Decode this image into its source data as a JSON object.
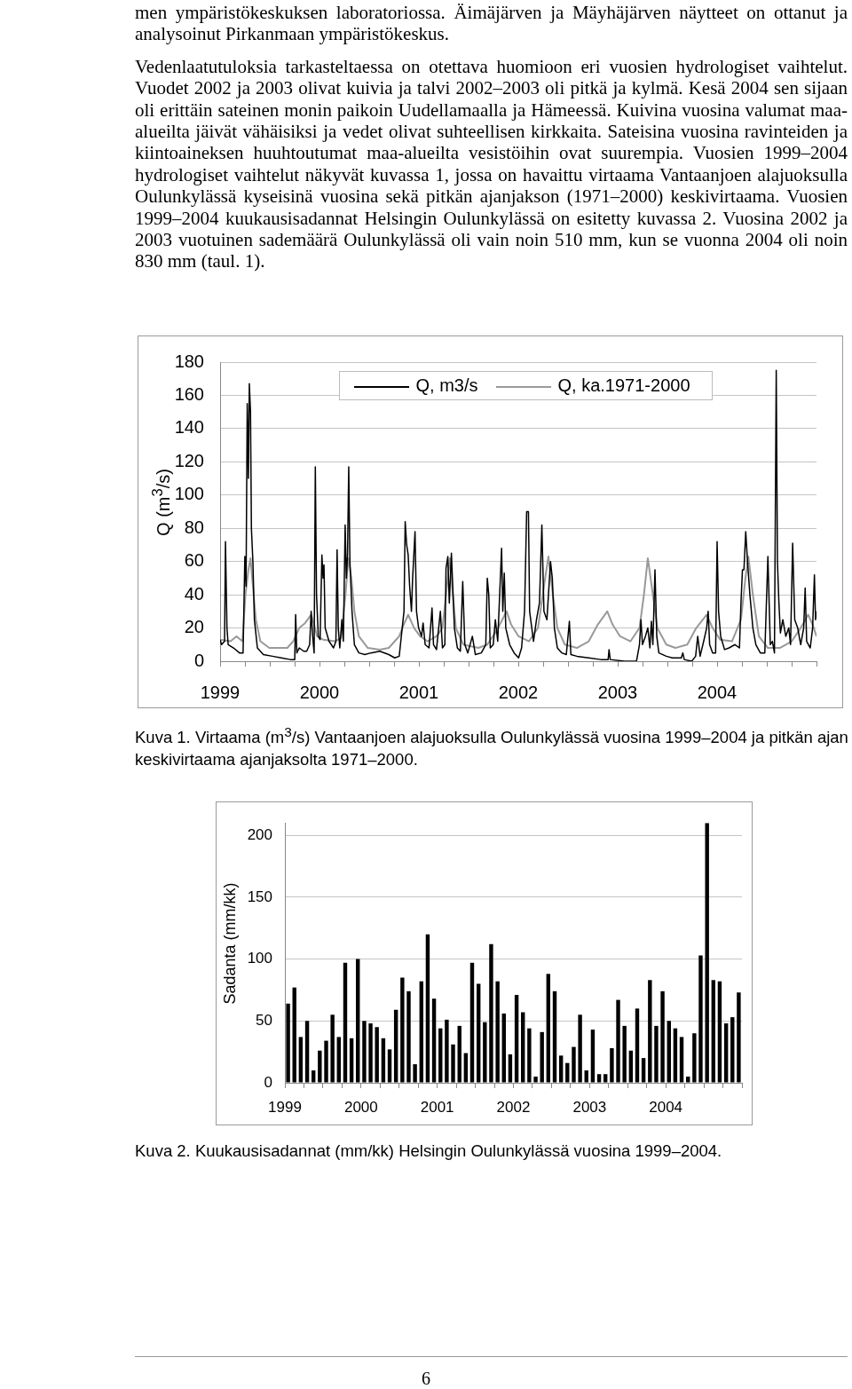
{
  "chart_data": [
    {
      "type": "line",
      "title": "Kuva 1. Virtaama (m$^{3}$/s) Vantaanjoen alajuoksulla Oulunkylässä vuosina 1999–2004 ja pitkän ajan keskivirtaama ajanjaksolta 1971–2000.",
      "annotations": [
        "men ympäristökeskuksen laboratoriossa. Äimäjärven ja Mäyhäjärven näytteet on ottanut ja analysoinut Pirkanmaan ympäristökeskus.",
        "Vedenlaatutuloksia tarkasteltaessa on otettava huomioon eri vuosien hydrologiset vaihtelut. Vuodet 2002 ja 2003 olivat kuivia ja talvi 2002–2003 oli pitkä ja kylmä. Kesä 2004 sen sijaan oli erittäin sateinen monin paikoin Uudellamaalla ja Hämeessä. Kuivina vuosina valumat maa-alueilta jäivät vähäisiksi ja vedet olivat suhteellisen kirkkaita. Sateisina vuosina ravinteiden ja kiintoaineksen huuhtoutumat maa-alueilta vesistöihin ovat suurempia. Vuosien 1999–2004 hydrologiset vaihtelut näkyvät kuvassa 1, jossa on havaittu virtaama Vantaanjoen alajuoksulla Oulunkylässä kyseisinä vuosina sekä pitkän ajanjakson (1971–2000) keskivirtaama. Vuosien 1999–2004 kuukausisadannat Helsingin Oulunkylässä on esitetty kuvassa 2. Vuosina 2002 ja 2003 vuotuinen sademäärä Oulunkylässä oli vain noin 510 mm, kun se vuonna 2004 oli noin 830 mm (taul. 1)."
      ],
      "ylabel": "Q (m$^{3}$/s)",
      "xlim": [
        1999,
        2005
      ],
      "xticks": [
        1999,
        {
          "value": 1999.25,
          "label": null
        },
        {
          "value": 1999.5,
          "label": null
        },
        {
          "value": 1999.75,
          "label": null
        },
        2000,
        {
          "value": 2000.25,
          "label": null
        },
        {
          "value": 2000.5,
          "label": null
        },
        {
          "value": 2000.75,
          "label": null
        },
        2001,
        {
          "value": 2001.25,
          "label": null
        },
        {
          "value": 2001.5,
          "label": null
        },
        {
          "value": 2001.75,
          "label": null
        },
        2002,
        {
          "value": 2002.25,
          "label": null
        },
        {
          "value": 2002.5,
          "label": null
        },
        {
          "value": 2002.75,
          "label": null
        },
        2003,
        {
          "value": 2003.25,
          "label": null
        },
        {
          "value": 2003.5,
          "label": null
        },
        {
          "value": 2003.75,
          "label": null
        },
        2004,
        {
          "value": 2004.25,
          "label": null
        },
        {
          "value": 2004.5,
          "label": null
        },
        {
          "value": 2004.75,
          "label": null
        },
        {
          "value": 2005,
          "label": null
        }
      ],
      "ylim": [
        0,
        180
      ],
      "yticks": [
        0,
        20,
        40,
        60,
        80,
        100,
        120,
        140,
        160,
        180
      ],
      "grid": "y",
      "legend": "top",
      "marker": "none",
      "series": [
        {
          "name": "Q, m3/s",
          "color": "#000000",
          "x": [
            1999.0,
            1999.015,
            1999.045,
            1999.054,
            1999.069,
            1999.081,
            1999.135,
            1999.195,
            1999.231,
            1999.249,
            1999.261,
            1999.273,
            1999.285,
            1999.294,
            1999.306,
            1999.315,
            1999.33,
            1999.345,
            1999.375,
            1999.435,
            1999.526,
            1999.616,
            1999.706,
            1999.751,
            1999.76,
            1999.772,
            1999.796,
            1999.841,
            1999.871,
            1999.901,
            1999.916,
            1999.931,
            1999.946,
            1999.958,
            1999.97,
            1999.988,
            2000.006,
            2000.024,
            2000.036,
            2000.045,
            2000.057,
            2000.096,
            2000.141,
            2000.165,
            2000.177,
            2000.189,
            2000.204,
            2000.225,
            2000.24,
            2000.258,
            2000.27,
            2000.282,
            2000.294,
            2000.306,
            2000.327,
            2000.351,
            2000.396,
            2000.456,
            2000.517,
            2000.607,
            2000.697,
            2000.757,
            2000.802,
            2000.832,
            2000.85,
            2000.862,
            2000.877,
            2000.892,
            2000.907,
            2000.925,
            2000.937,
            2000.961,
            2000.976,
            2000.997,
            2001.027,
            2001.042,
            2001.063,
            2001.102,
            2001.132,
            2001.147,
            2001.177,
            2001.216,
            2001.237,
            2001.261,
            2001.273,
            2001.291,
            2001.306,
            2001.327,
            2001.357,
            2001.387,
            2001.417,
            2001.441,
            2001.462,
            2001.492,
            2001.538,
            2001.568,
            2001.628,
            2001.673,
            2001.688,
            2001.703,
            2001.718,
            2001.748,
            2001.769,
            2001.793,
            2001.832,
            2001.844,
            2001.859,
            2001.874,
            2001.913,
            2001.958,
            2002.003,
            2002.033,
            2002.063,
            2002.084,
            2002.102,
            2002.114,
            2002.153,
            2002.183,
            2002.213,
            2002.237,
            2002.258,
            2002.288,
            2002.324,
            2002.342,
            2002.363,
            2002.393,
            2002.438,
            2002.483,
            2002.514,
            2002.529,
            2002.589,
            2002.709,
            2002.829,
            2002.904,
            2002.913,
            2002.925,
            2003.069,
            2003.189,
            2003.219,
            2003.234,
            2003.249,
            2003.279,
            2003.303,
            2003.324,
            2003.339,
            2003.354,
            2003.375,
            2003.393,
            2003.414,
            2003.489,
            2003.55,
            2003.64,
            2003.655,
            2003.67,
            2003.745,
            2003.784,
            2003.805,
            2003.829,
            2003.865,
            2003.895,
            2003.91,
            2003.925,
            2003.955,
            2003.985,
            2004.0,
            2004.015,
            2004.036,
            2004.075,
            2004.12,
            2004.18,
            2004.225,
            2004.24,
            2004.255,
            2004.27,
            2004.288,
            2004.306,
            2004.33,
            2004.36,
            2004.39,
            2004.435,
            2004.48,
            2004.511,
            2004.535,
            2004.556,
            2004.577,
            2004.595,
            2004.607,
            2004.622,
            2004.637,
            2004.661,
            2004.691,
            2004.721,
            2004.739,
            2004.76,
            2004.781,
            2004.811,
            2004.841,
            2004.871,
            2004.886,
            2004.901,
            2004.937,
            2004.961,
            2004.979,
            2004.99,
            2005.0
          ],
          "values": [
            13,
            10,
            12,
            72,
            20,
            10,
            8,
            5,
            5,
            63,
            45,
            155,
            110,
            167,
            150,
            80,
            60,
            25,
            8,
            4,
            3,
            2,
            1,
            1,
            28,
            5,
            8,
            6,
            6,
            10,
            30,
            15,
            5,
            117,
            40,
            15,
            13,
            64,
            50,
            58,
            20,
            12,
            8,
            12,
            67,
            20,
            8,
            25,
            12,
            82,
            50,
            64,
            117,
            60,
            30,
            10,
            5,
            4,
            5,
            6,
            4,
            2,
            3,
            20,
            30,
            84,
            70,
            64,
            45,
            30,
            50,
            78,
            30,
            20,
            15,
            23,
            10,
            8,
            32,
            10,
            7,
            30,
            8,
            10,
            56,
            63,
            35,
            65,
            20,
            8,
            6,
            48,
            10,
            5,
            15,
            4,
            5,
            10,
            50,
            40,
            8,
            10,
            25,
            12,
            68,
            30,
            53,
            20,
            10,
            5,
            2,
            8,
            30,
            90,
            90,
            30,
            12,
            25,
            35,
            82,
            30,
            25,
            60,
            50,
            20,
            8,
            5,
            4,
            24,
            4,
            3,
            2,
            1,
            1,
            7,
            1,
            0,
            0,
            10,
            25,
            10,
            15,
            20,
            8,
            24,
            10,
            55,
            15,
            5,
            3,
            2,
            2,
            5,
            1,
            0,
            3,
            15,
            3,
            12,
            20,
            30,
            10,
            5,
            5,
            72,
            30,
            15,
            7,
            8,
            10,
            8,
            35,
            55,
            55,
            78,
            60,
            40,
            20,
            10,
            5,
            5,
            63,
            10,
            12,
            5,
            175,
            60,
            35,
            17,
            25,
            15,
            20,
            10,
            71,
            25,
            20,
            10,
            20,
            44,
            12,
            8,
            20,
            52,
            25,
            30
          ]
        },
        {
          "name": "Q, ka.1971-2000",
          "color": "#999999",
          "x": [
            1999.0,
            1999.105,
            1999.165,
            1999.225,
            1999.255,
            1999.285,
            1999.306,
            1999.33,
            1999.36,
            1999.405,
            1999.495,
            1999.616,
            1999.676,
            1999.736,
            1999.796,
            1999.856,
            1999.916,
            1999.946,
            1999.976,
            2000.036,
            2000.156,
            2000.216,
            2000.261,
            2000.291,
            2000.321,
            2000.351,
            2000.396,
            2000.486,
            2000.607,
            2000.697,
            2000.757,
            2000.802,
            2000.847,
            2000.892,
            2000.952,
            2001.012,
            2001.087,
            2001.177,
            2001.237,
            2001.282,
            2001.312,
            2001.342,
            2001.372,
            2001.447,
            2001.598,
            2001.688,
            2001.778,
            2001.883,
            2001.928,
            2002.003,
            2002.108,
            2002.198,
            2002.258,
            2002.303,
            2002.348,
            2002.393,
            2002.468,
            2002.589,
            2002.709,
            2002.799,
            2002.895,
            2002.949,
            2003.024,
            2003.129,
            2003.219,
            2003.264,
            2003.303,
            2003.354,
            2003.399,
            2003.489,
            2003.58,
            2003.7,
            2003.79,
            2003.895,
            2003.955,
            2004.03,
            2004.15,
            2004.24,
            2004.285,
            2004.315,
            2004.36,
            2004.42,
            2004.511,
            2004.631,
            2004.751,
            2004.841,
            2004.916,
            2004.961,
            2005.0
          ],
          "values": [
            13,
            12,
            15,
            12,
            40,
            55,
            62,
            45,
            25,
            12,
            8,
            8,
            8,
            12,
            20,
            23,
            28,
            22,
            15,
            13,
            12,
            14,
            40,
            62,
            50,
            30,
            15,
            8,
            7,
            8,
            12,
            15,
            22,
            28,
            20,
            15,
            12,
            15,
            20,
            45,
            62,
            40,
            20,
            10,
            8,
            10,
            18,
            30,
            22,
            15,
            12,
            20,
            45,
            63,
            40,
            20,
            10,
            8,
            12,
            22,
            30,
            22,
            15,
            12,
            20,
            40,
            62,
            40,
            20,
            10,
            8,
            10,
            20,
            28,
            20,
            13,
            12,
            25,
            50,
            63,
            40,
            15,
            8,
            8,
            12,
            20,
            28,
            22,
            15
          ]
        }
      ]
    },
    {
      "type": "bar",
      "title": "Kuva 2. Kuukausisadannat (mm/kk) Helsingin Oulunkylässä vuosina 1999–2004.",
      "annotations": [
        "6"
      ],
      "ylabel": "Sadanta (mm/kk)",
      "xlim": [
        1999,
        2005
      ],
      "xticks": [
        1999,
        {
          "value": 1999.25,
          "label": null
        },
        {
          "value": 1999.5,
          "label": null
        },
        {
          "value": 1999.75,
          "label": null
        },
        2000,
        {
          "value": 2000.25,
          "label": null
        },
        {
          "value": 2000.5,
          "label": null
        },
        {
          "value": 2000.75,
          "label": null
        },
        2001,
        {
          "value": 2001.25,
          "label": null
        },
        {
          "value": 2001.5,
          "label": null
        },
        {
          "value": 2001.75,
          "label": null
        },
        2002,
        {
          "value": 2002.25,
          "label": null
        },
        {
          "value": 2002.5,
          "label": null
        },
        {
          "value": 2002.75,
          "label": null
        },
        2003,
        {
          "value": 2003.25,
          "label": null
        },
        {
          "value": 2003.5,
          "label": null
        },
        {
          "value": 2003.75,
          "label": null
        },
        2004,
        {
          "value": 2004.25,
          "label": null
        },
        {
          "value": 2004.5,
          "label": null
        },
        {
          "value": 2004.75,
          "label": null
        },
        {
          "value": 2005,
          "label": null
        }
      ],
      "ylim": [
        0,
        210
      ],
      "yticks": [
        0,
        50,
        100,
        150,
        200
      ],
      "grid": "y",
      "color": "#000000",
      "x": [
        1999.042,
        1999.125,
        1999.208,
        1999.292,
        1999.375,
        1999.458,
        1999.542,
        1999.625,
        1999.708,
        1999.792,
        1999.875,
        1999.958,
        2000.042,
        2000.125,
        2000.208,
        2000.292,
        2000.375,
        2000.458,
        2000.542,
        2000.625,
        2000.708,
        2000.792,
        2000.875,
        2000.958,
        2001.042,
        2001.125,
        2001.208,
        2001.292,
        2001.375,
        2001.458,
        2001.542,
        2001.625,
        2001.708,
        2001.792,
        2001.875,
        2001.958,
        2002.042,
        2002.125,
        2002.208,
        2002.292,
        2002.375,
        2002.458,
        2002.542,
        2002.625,
        2002.708,
        2002.792,
        2002.875,
        2002.958,
        2003.042,
        2003.125,
        2003.208,
        2003.292,
        2003.375,
        2003.458,
        2003.542,
        2003.625,
        2003.708,
        2003.792,
        2003.875,
        2003.958,
        2004.042,
        2004.125,
        2004.208,
        2004.292,
        2004.375,
        2004.458,
        2004.542,
        2004.625,
        2004.708,
        2004.792,
        2004.875,
        2004.958
      ],
      "values": [
        64,
        77,
        37,
        50,
        10,
        26,
        34,
        55,
        37,
        97,
        36,
        100,
        50,
        48,
        45,
        36,
        27,
        59,
        85,
        74,
        15,
        82,
        120,
        68,
        44,
        51,
        31,
        46,
        24,
        97,
        80,
        49,
        112,
        82,
        56,
        23,
        71,
        57,
        44,
        5,
        41,
        88,
        74,
        22,
        16,
        29,
        55,
        10,
        43,
        7,
        7,
        28,
        67,
        46,
        26,
        60,
        20,
        83,
        46,
        74,
        50,
        44,
        37,
        5,
        40,
        103,
        210,
        83,
        82,
        48,
        53,
        73
      ]
    }
  ]
}
